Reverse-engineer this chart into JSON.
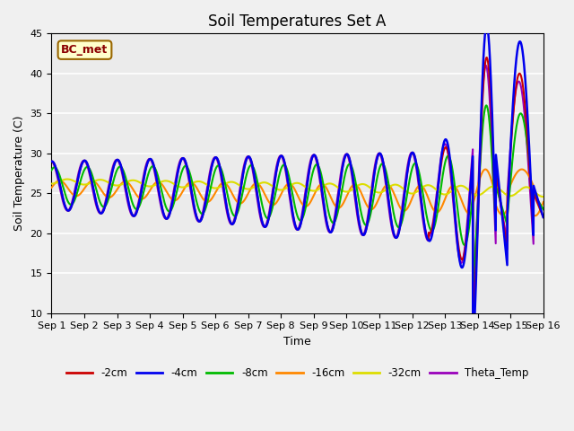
{
  "title": "Soil Temperatures Set A",
  "xlabel": "Time",
  "ylabel": "Soil Temperature (C)",
  "ylim": [
    10,
    45
  ],
  "xlim": [
    0,
    15
  ],
  "xtick_labels": [
    "Sep 1",
    "Sep 2",
    "Sep 3",
    "Sep 4",
    "Sep 5",
    "Sep 6",
    "Sep 7",
    "Sep 8",
    "Sep 9",
    "Sep 10",
    "Sep 11",
    "Sep 12",
    "Sep 13",
    "Sep 14",
    "Sep 15",
    "Sep 16"
  ],
  "series": {
    "-2cm": {
      "color": "#cc0000",
      "lw": 1.5
    },
    "-4cm": {
      "color": "#0000ee",
      "lw": 1.8
    },
    "-8cm": {
      "color": "#00bb00",
      "lw": 1.5
    },
    "-16cm": {
      "color": "#ff8800",
      "lw": 1.5
    },
    "-32cm": {
      "color": "#dddd00",
      "lw": 1.5
    },
    "Theta_Temp": {
      "color": "#9900bb",
      "lw": 1.5
    }
  },
  "legend_order": [
    "-2cm",
    "-4cm",
    "-8cm",
    "-16cm",
    "-32cm",
    "Theta_Temp"
  ],
  "annotation_text": "BC_met",
  "bg_color": "#ebebeb",
  "title_fontsize": 12,
  "label_fontsize": 9,
  "tick_fontsize": 8
}
